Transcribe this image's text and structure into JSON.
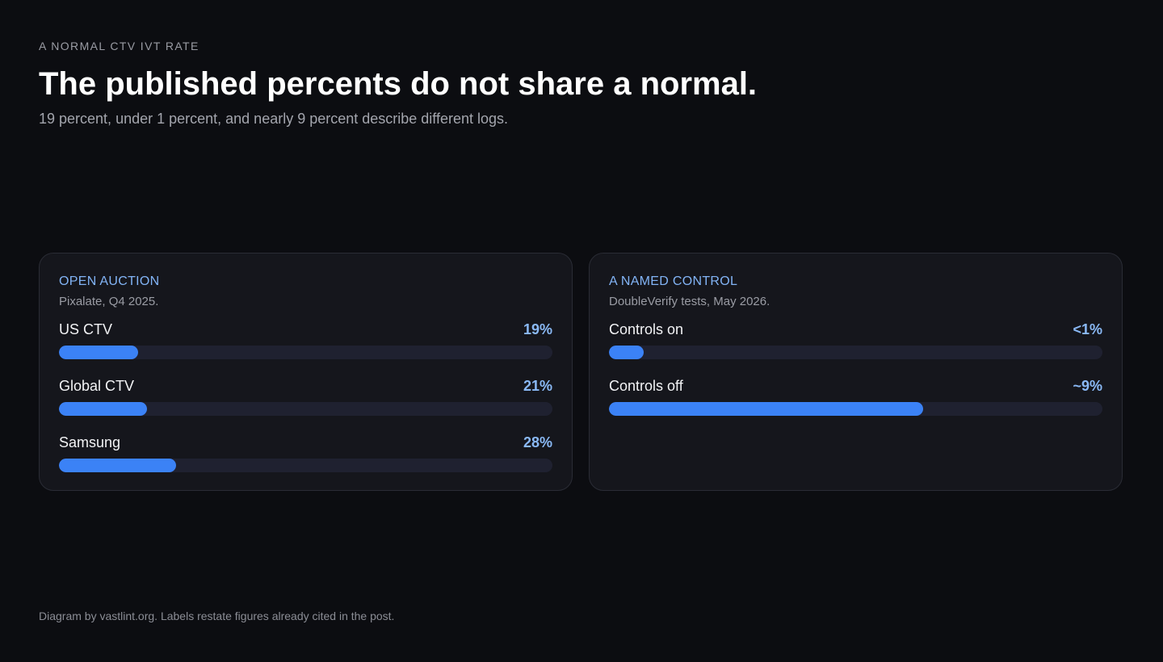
{
  "header": {
    "eyebrow": "A NORMAL CTV IVT RATE",
    "title": "The published percents do not share a normal.",
    "subtitle": "19 percent, under 1 percent, and nearly 9 percent describe different logs."
  },
  "panels": [
    {
      "title": "OPEN AUCTION",
      "source": "Pixalate, Q4 2025.",
      "rows": [
        {
          "label": "US CTV",
          "value": "19%",
          "fill_fraction": 0.16
        },
        {
          "label": "Global CTV",
          "value": "21%",
          "fill_fraction": 0.178
        },
        {
          "label": "Samsung",
          "value": "28%",
          "fill_fraction": 0.238
        }
      ]
    },
    {
      "title": "A NAMED CONTROL",
      "source": "DoubleVerify tests, May 2026.",
      "rows": [
        {
          "label": "Controls on",
          "value": "<1%",
          "fill_fraction": 0.07
        },
        {
          "label": "Controls off",
          "value": "~9%",
          "fill_fraction": 0.636
        }
      ]
    }
  ],
  "footer": "Diagram by vastlint.org. Labels restate figures already cited in the post.",
  "colors": {
    "background": "#0c0d11",
    "card": "#15161c",
    "accent": "#3b82f6",
    "value_text": "#8ab9f5",
    "track": "#1f2130"
  }
}
